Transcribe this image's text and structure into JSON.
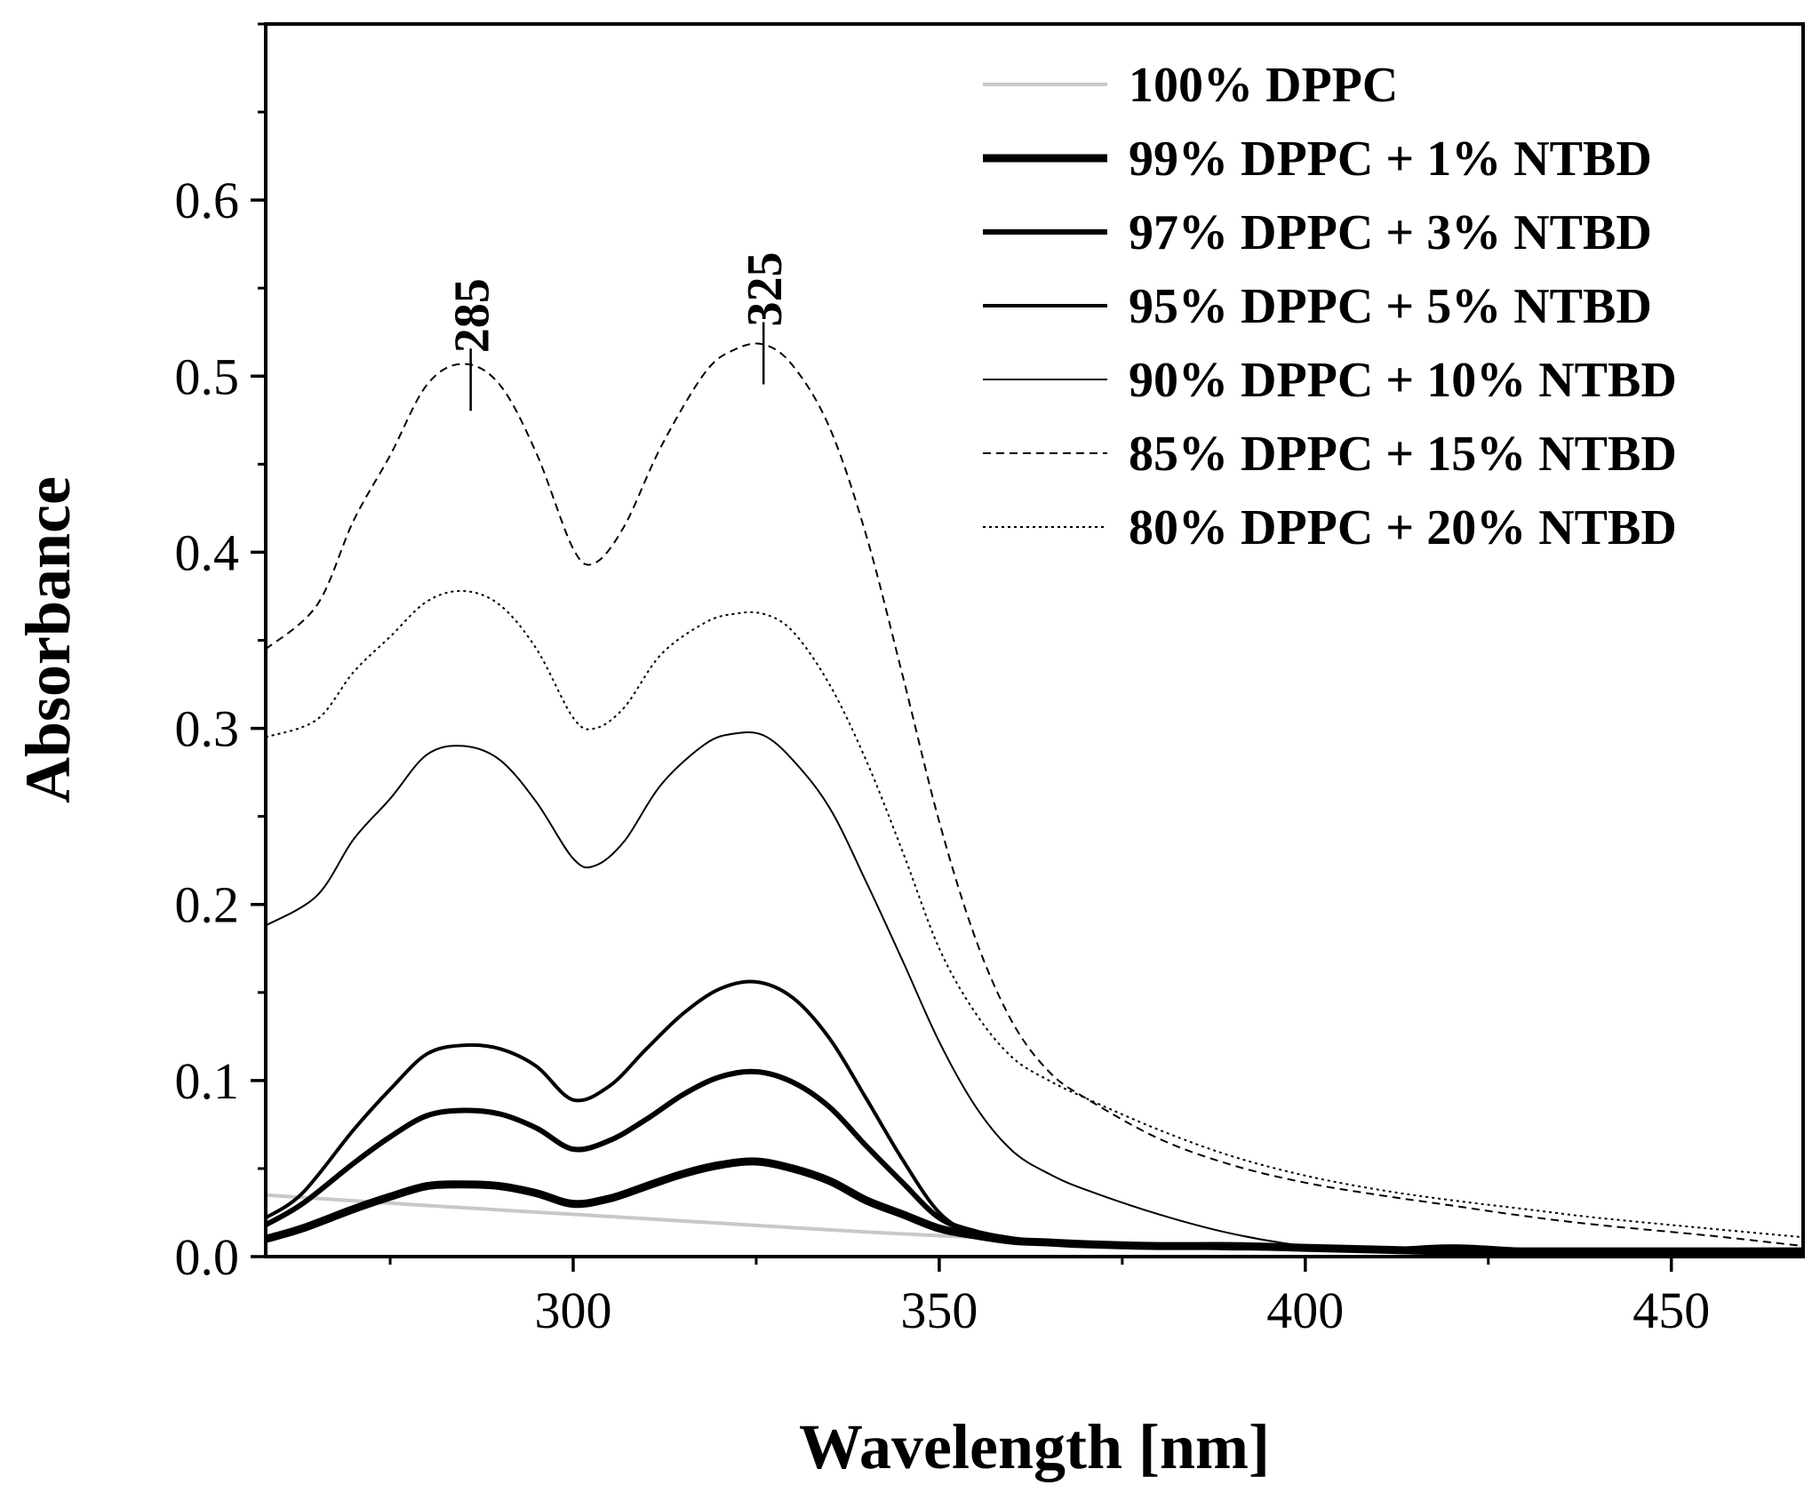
{
  "chart_data": {
    "type": "line",
    "title": "",
    "xlabel": "Wavelength [nm]",
    "ylabel": "Absorbance",
    "xlim": [
      258,
      468
    ],
    "ylim": [
      0,
      0.7
    ],
    "xticks": [
      300,
      350,
      400,
      450
    ],
    "xtick_labels": [
      "300",
      "350",
      "400",
      "450"
    ],
    "xminor_step": 25,
    "yticks": [
      0,
      0.1,
      0.2,
      0.3,
      0.4,
      0.5,
      0.6
    ],
    "ytick_labels": [
      "0.0",
      "0.1",
      "0.2",
      "0.3",
      "0.4",
      "0.5",
      "0.6"
    ],
    "yminor_step": 0.05,
    "grid": false,
    "legend_position": "top-right",
    "series": [
      {
        "name": "100% DPPC",
        "color": "#c8c8c8",
        "style": "solid",
        "weight": "medium",
        "x": [
          258,
          280,
          300,
          320,
          340,
          360,
          380,
          400,
          420,
          440,
          468
        ],
        "y": [
          0.035,
          0.029,
          0.024,
          0.019,
          0.014,
          0.01,
          0.007,
          0.005,
          0.004,
          0.003,
          0.002
        ]
      },
      {
        "name": "99% DPPC + 1% NTBD",
        "color": "#000000",
        "style": "solid",
        "weight": "heaviest",
        "x": [
          258,
          263,
          270,
          275,
          280,
          285,
          290,
          295,
          300,
          305,
          310,
          315,
          320,
          325,
          330,
          335,
          340,
          345,
          350,
          355,
          360,
          365,
          370,
          380,
          390,
          400,
          410,
          420,
          430,
          440,
          455,
          468
        ],
        "y": [
          0.01,
          0.016,
          0.027,
          0.034,
          0.04,
          0.041,
          0.04,
          0.036,
          0.03,
          0.033,
          0.04,
          0.047,
          0.052,
          0.054,
          0.05,
          0.043,
          0.032,
          0.024,
          0.016,
          0.012,
          0.009,
          0.008,
          0.007,
          0.006,
          0.006,
          0.005,
          0.004,
          0.003,
          0.003,
          0.003,
          0.003,
          0.003
        ]
      },
      {
        "name": "97% DPPC + 3% NTBD",
        "color": "#000000",
        "style": "solid",
        "weight": "heavy",
        "x": [
          258,
          263,
          270,
          275,
          280,
          285,
          290,
          295,
          300,
          305,
          310,
          315,
          320,
          325,
          330,
          335,
          340,
          345,
          350,
          355,
          360,
          365,
          370,
          380,
          390,
          400,
          410,
          420,
          430,
          440,
          455,
          468
        ],
        "y": [
          0.018,
          0.03,
          0.053,
          0.068,
          0.08,
          0.083,
          0.081,
          0.073,
          0.061,
          0.066,
          0.078,
          0.092,
          0.102,
          0.105,
          0.099,
          0.085,
          0.063,
          0.042,
          0.022,
          0.014,
          0.01,
          0.008,
          0.007,
          0.006,
          0.005,
          0.005,
          0.004,
          0.004,
          0.003,
          0.003,
          0.003,
          0.003
        ]
      },
      {
        "name": "95% DPPC + 5% NTBD",
        "color": "#000000",
        "style": "solid",
        "weight": "medium-heavy",
        "x": [
          258,
          263,
          270,
          275,
          280,
          285,
          290,
          295,
          300,
          305,
          310,
          315,
          320,
          325,
          330,
          335,
          340,
          345,
          350,
          355,
          360,
          365,
          370,
          380,
          390,
          400,
          410,
          420,
          430,
          440,
          455,
          468
        ],
        "y": [
          0.022,
          0.036,
          0.072,
          0.095,
          0.115,
          0.12,
          0.118,
          0.108,
          0.089,
          0.097,
          0.118,
          0.138,
          0.152,
          0.156,
          0.147,
          0.124,
          0.09,
          0.055,
          0.025,
          0.012,
          0.008,
          0.007,
          0.006,
          0.005,
          0.005,
          0.004,
          0.004,
          0.006,
          0.004,
          0.003,
          0.003,
          0.003
        ]
      },
      {
        "name": "90% DPPC + 10% NTBD",
        "color": "#000000",
        "style": "solid",
        "weight": "thin",
        "x": [
          258,
          265,
          270,
          275,
          280,
          285,
          290,
          295,
          300,
          303,
          307,
          312,
          318,
          322,
          326,
          330,
          335,
          340,
          345,
          350,
          355,
          360,
          365,
          370,
          380,
          390,
          400,
          410,
          420,
          430,
          440,
          455,
          468
        ],
        "y": [
          0.188,
          0.205,
          0.237,
          0.26,
          0.285,
          0.29,
          0.282,
          0.258,
          0.226,
          0.222,
          0.236,
          0.268,
          0.291,
          0.297,
          0.296,
          0.282,
          0.255,
          0.213,
          0.168,
          0.122,
          0.085,
          0.06,
          0.047,
          0.038,
          0.024,
          0.013,
          0.006,
          0.003,
          0.002,
          0.002,
          0.001,
          0.001,
          0.001
        ]
      },
      {
        "name": "85% DPPC + 15% NTBD",
        "color": "#000000",
        "style": "dashed",
        "weight": "thin",
        "x": [
          258,
          265,
          270,
          275,
          280,
          285,
          290,
          295,
          300,
          303,
          307,
          312,
          318,
          322,
          326,
          330,
          335,
          340,
          345,
          350,
          355,
          360,
          365,
          370,
          380,
          390,
          400,
          410,
          420,
          430,
          440,
          455,
          468
        ],
        "y": [
          0.345,
          0.37,
          0.418,
          0.455,
          0.495,
          0.507,
          0.495,
          0.456,
          0.402,
          0.394,
          0.415,
          0.46,
          0.502,
          0.515,
          0.518,
          0.506,
          0.471,
          0.41,
          0.33,
          0.247,
          0.18,
          0.133,
          0.105,
          0.09,
          0.067,
          0.052,
          0.042,
          0.035,
          0.029,
          0.023,
          0.018,
          0.012,
          0.006
        ]
      },
      {
        "name": "80% DPPC + 20% NTBD",
        "color": "#000000",
        "style": "dotted",
        "weight": "thin",
        "x": [
          258,
          265,
          270,
          275,
          280,
          285,
          290,
          295,
          300,
          303,
          307,
          312,
          318,
          322,
          326,
          330,
          335,
          340,
          345,
          350,
          355,
          360,
          365,
          370,
          380,
          390,
          400,
          410,
          420,
          430,
          440,
          455,
          468
        ],
        "y": [
          0.295,
          0.305,
          0.332,
          0.352,
          0.372,
          0.378,
          0.37,
          0.345,
          0.306,
          0.3,
          0.312,
          0.342,
          0.36,
          0.365,
          0.365,
          0.355,
          0.325,
          0.282,
          0.23,
          0.175,
          0.138,
          0.113,
          0.1,
          0.09,
          0.072,
          0.057,
          0.046,
          0.038,
          0.032,
          0.027,
          0.022,
          0.016,
          0.011
        ]
      }
    ],
    "annotations": [
      {
        "label": "285",
        "x": 286,
        "y": 0.498
      },
      {
        "label": "325",
        "x": 326,
        "y": 0.513
      }
    ]
  }
}
